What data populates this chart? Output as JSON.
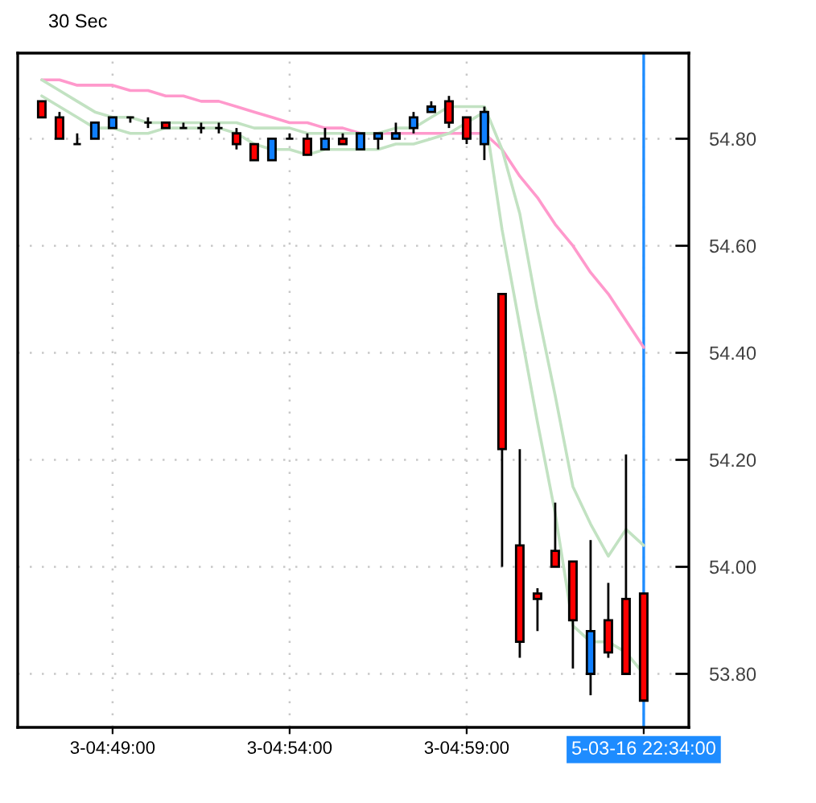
{
  "chart_data": {
    "type": "candlestick",
    "title": "30 Sec",
    "categories": [
      null,
      null,
      null,
      null,
      "3-04:49:00",
      null,
      null,
      null,
      null,
      null,
      null,
      null,
      null,
      null,
      "3-04:54:00",
      null,
      null,
      null,
      null,
      null,
      null,
      null,
      null,
      null,
      "3-04:59:00",
      null,
      null,
      null,
      null,
      null,
      null,
      null,
      null,
      null,
      "5-03-16 22:34:00"
    ],
    "ohlc": [
      [
        54.87,
        54.87,
        54.84,
        54.84
      ],
      [
        54.84,
        54.85,
        54.8,
        54.8
      ],
      [
        54.79,
        54.81,
        54.79,
        54.79
      ],
      [
        54.8,
        54.83,
        54.8,
        54.83
      ],
      [
        54.82,
        54.84,
        54.82,
        54.84
      ],
      [
        54.84,
        54.84,
        54.83,
        54.84
      ],
      [
        54.83,
        54.84,
        54.82,
        54.83
      ],
      [
        54.83,
        54.83,
        54.82,
        54.82
      ],
      [
        54.82,
        54.83,
        54.82,
        54.82
      ],
      [
        54.82,
        54.83,
        54.81,
        54.82
      ],
      [
        54.82,
        54.83,
        54.81,
        54.82
      ],
      [
        54.81,
        54.82,
        54.78,
        54.79
      ],
      [
        54.79,
        54.79,
        54.76,
        54.76
      ],
      [
        54.76,
        54.8,
        54.76,
        54.8
      ],
      [
        54.8,
        54.81,
        54.8,
        54.8
      ],
      [
        54.8,
        54.81,
        54.77,
        54.77
      ],
      [
        54.78,
        54.82,
        54.78,
        54.8
      ],
      [
        54.8,
        54.81,
        54.79,
        54.79
      ],
      [
        54.78,
        54.81,
        54.78,
        54.81
      ],
      [
        54.8,
        54.81,
        54.78,
        54.81
      ],
      [
        54.8,
        54.83,
        54.8,
        54.81
      ],
      [
        54.82,
        54.85,
        54.81,
        54.84
      ],
      [
        54.85,
        54.87,
        54.85,
        54.86
      ],
      [
        54.87,
        54.88,
        54.82,
        54.83
      ],
      [
        54.84,
        54.84,
        54.79,
        54.8
      ],
      [
        54.79,
        54.86,
        54.76,
        54.85
      ],
      [
        54.51,
        54.51,
        54.0,
        54.22
      ],
      [
        54.04,
        54.22,
        53.83,
        53.86
      ],
      [
        53.95,
        53.96,
        53.88,
        53.94
      ],
      [
        54.03,
        54.12,
        54.0,
        54.0
      ],
      [
        54.01,
        54.01,
        53.81,
        53.9
      ],
      [
        53.8,
        54.05,
        53.76,
        53.88
      ],
      [
        53.9,
        53.97,
        53.83,
        53.84
      ],
      [
        53.94,
        54.21,
        53.8,
        53.8
      ],
      [
        53.95,
        53.95,
        53.75,
        53.75
      ]
    ],
    "colors": [
      "#ff0000",
      "#ff0000",
      "#000000",
      "#0f7fff",
      "#0f7fff",
      "#000000",
      "#000000",
      "#ff0000",
      "#000000",
      "#000000",
      "#000000",
      "#ff0000",
      "#ff0000",
      "#0f7fff",
      "#000000",
      "#ff0000",
      "#0f7fff",
      "#ff0000",
      "#0f7fff",
      "#0f7fff",
      "#0f7fff",
      "#0f7fff",
      "#0f7fff",
      "#ff0000",
      "#ff0000",
      "#0f7fff",
      "#ff0000",
      "#ff0000",
      "#ff0000",
      "#ff0000",
      "#ff0000",
      "#0f7fff",
      "#ff0000",
      "#ff0000",
      "#ff0000"
    ],
    "series": [
      {
        "type": "line",
        "color": "#ff99cc",
        "values": [
          54.91,
          54.91,
          54.9,
          54.9,
          54.9,
          54.89,
          54.89,
          54.88,
          54.88,
          54.87,
          54.87,
          54.86,
          54.85,
          54.84,
          54.83,
          54.83,
          54.82,
          54.82,
          54.81,
          54.81,
          54.81,
          54.81,
          54.81,
          54.81,
          54.81,
          54.81,
          54.78,
          54.73,
          54.69,
          54.64,
          54.6,
          54.55,
          54.51,
          54.46,
          54.41
        ]
      },
      {
        "type": "line",
        "color": "#c2e2c2",
        "values": [
          54.88,
          54.86,
          54.84,
          54.82,
          54.82,
          54.81,
          54.81,
          54.82,
          54.82,
          54.82,
          54.82,
          54.81,
          54.79,
          54.78,
          54.78,
          54.77,
          54.78,
          54.78,
          54.78,
          54.78,
          54.79,
          54.79,
          54.8,
          54.81,
          54.83,
          54.85,
          54.63,
          54.45,
          54.27,
          54.1,
          53.89,
          53.86,
          53.86,
          53.84,
          53.8
        ]
      },
      {
        "type": "line",
        "color": "#c2e2c2",
        "values": [
          54.91,
          54.89,
          54.87,
          54.85,
          54.84,
          54.84,
          54.83,
          54.83,
          54.83,
          54.83,
          54.83,
          54.83,
          54.82,
          54.82,
          54.82,
          54.81,
          54.81,
          54.81,
          54.81,
          54.81,
          54.82,
          54.82,
          54.84,
          54.86,
          54.86,
          54.86,
          54.78,
          54.66,
          54.48,
          54.32,
          54.15,
          54.08,
          54.02,
          54.07,
          54.04
        ]
      }
    ],
    "ylim": [
      53.7,
      54.96
    ],
    "yticks": [
      {
        "value": 53.8,
        "label": "53.80"
      },
      {
        "value": 54.0,
        "label": "54.00"
      },
      {
        "value": 54.2,
        "label": "54.20"
      },
      {
        "value": 54.4,
        "label": "54.40"
      },
      {
        "value": 54.6,
        "label": "54.60"
      },
      {
        "value": 54.8,
        "label": "54.80"
      }
    ],
    "grid": true,
    "ref_lines": [
      {
        "axis": "x",
        "value": "5-03-16 22:34:00",
        "color": "#1e8cff"
      }
    ]
  }
}
